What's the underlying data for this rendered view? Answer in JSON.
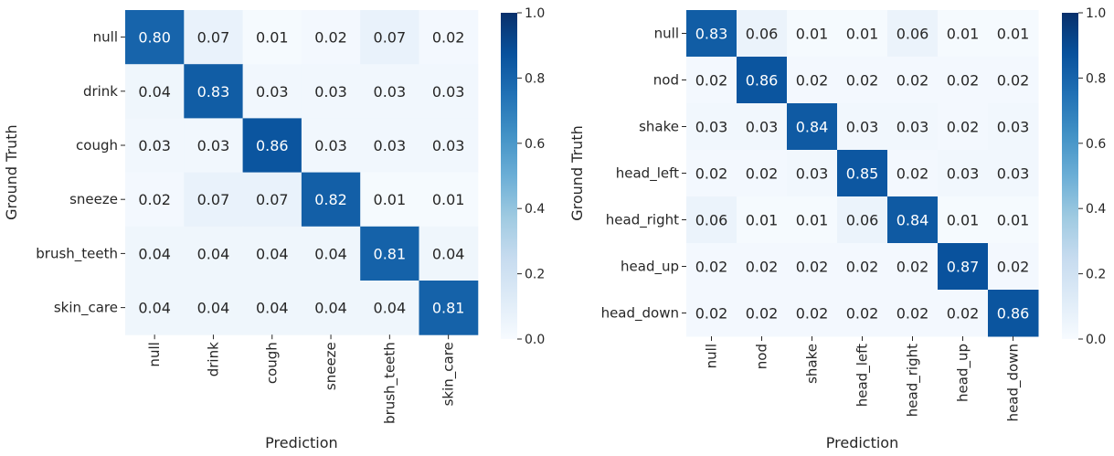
{
  "chart_data": [
    {
      "type": "heatmap",
      "xlabel": "Prediction",
      "ylabel": "Ground Truth",
      "categories": [
        "null",
        "drink",
        "cough",
        "sneeze",
        "brush_teeth",
        "skin_care"
      ],
      "values": [
        [
          0.8,
          0.07,
          0.01,
          0.02,
          0.07,
          0.02
        ],
        [
          0.04,
          0.83,
          0.03,
          0.03,
          0.03,
          0.03
        ],
        [
          0.03,
          0.03,
          0.86,
          0.03,
          0.03,
          0.03
        ],
        [
          0.02,
          0.07,
          0.07,
          0.82,
          0.01,
          0.01
        ],
        [
          0.04,
          0.04,
          0.04,
          0.04,
          0.81,
          0.04
        ],
        [
          0.04,
          0.04,
          0.04,
          0.04,
          0.04,
          0.81
        ]
      ],
      "colorbar": {
        "range": [
          0.0,
          1.0
        ],
        "ticks": [
          "0.0",
          "0.2",
          "0.4",
          "0.6",
          "0.8",
          "1.0"
        ]
      },
      "colormap": "Blues",
      "legend": "colorbar-right"
    },
    {
      "type": "heatmap",
      "xlabel": "Prediction",
      "ylabel": "Ground Truth",
      "categories": [
        "null",
        "nod",
        "shake",
        "head_left",
        "head_right",
        "head_up",
        "head_down"
      ],
      "values": [
        [
          0.83,
          0.06,
          0.01,
          0.01,
          0.06,
          0.01,
          0.01
        ],
        [
          0.02,
          0.86,
          0.02,
          0.02,
          0.02,
          0.02,
          0.02
        ],
        [
          0.03,
          0.03,
          0.84,
          0.03,
          0.03,
          0.02,
          0.03
        ],
        [
          0.02,
          0.02,
          0.03,
          0.85,
          0.02,
          0.03,
          0.03
        ],
        [
          0.06,
          0.01,
          0.01,
          0.06,
          0.84,
          0.01,
          0.01
        ],
        [
          0.02,
          0.02,
          0.02,
          0.02,
          0.02,
          0.87,
          0.02
        ],
        [
          0.02,
          0.02,
          0.02,
          0.02,
          0.02,
          0.02,
          0.86
        ]
      ],
      "colorbar": {
        "range": [
          0.0,
          1.0
        ],
        "ticks": [
          "0.0",
          "0.2",
          "0.4",
          "0.6",
          "0.8",
          "1.0"
        ]
      },
      "colormap": "Blues",
      "legend": "colorbar-right"
    }
  ]
}
